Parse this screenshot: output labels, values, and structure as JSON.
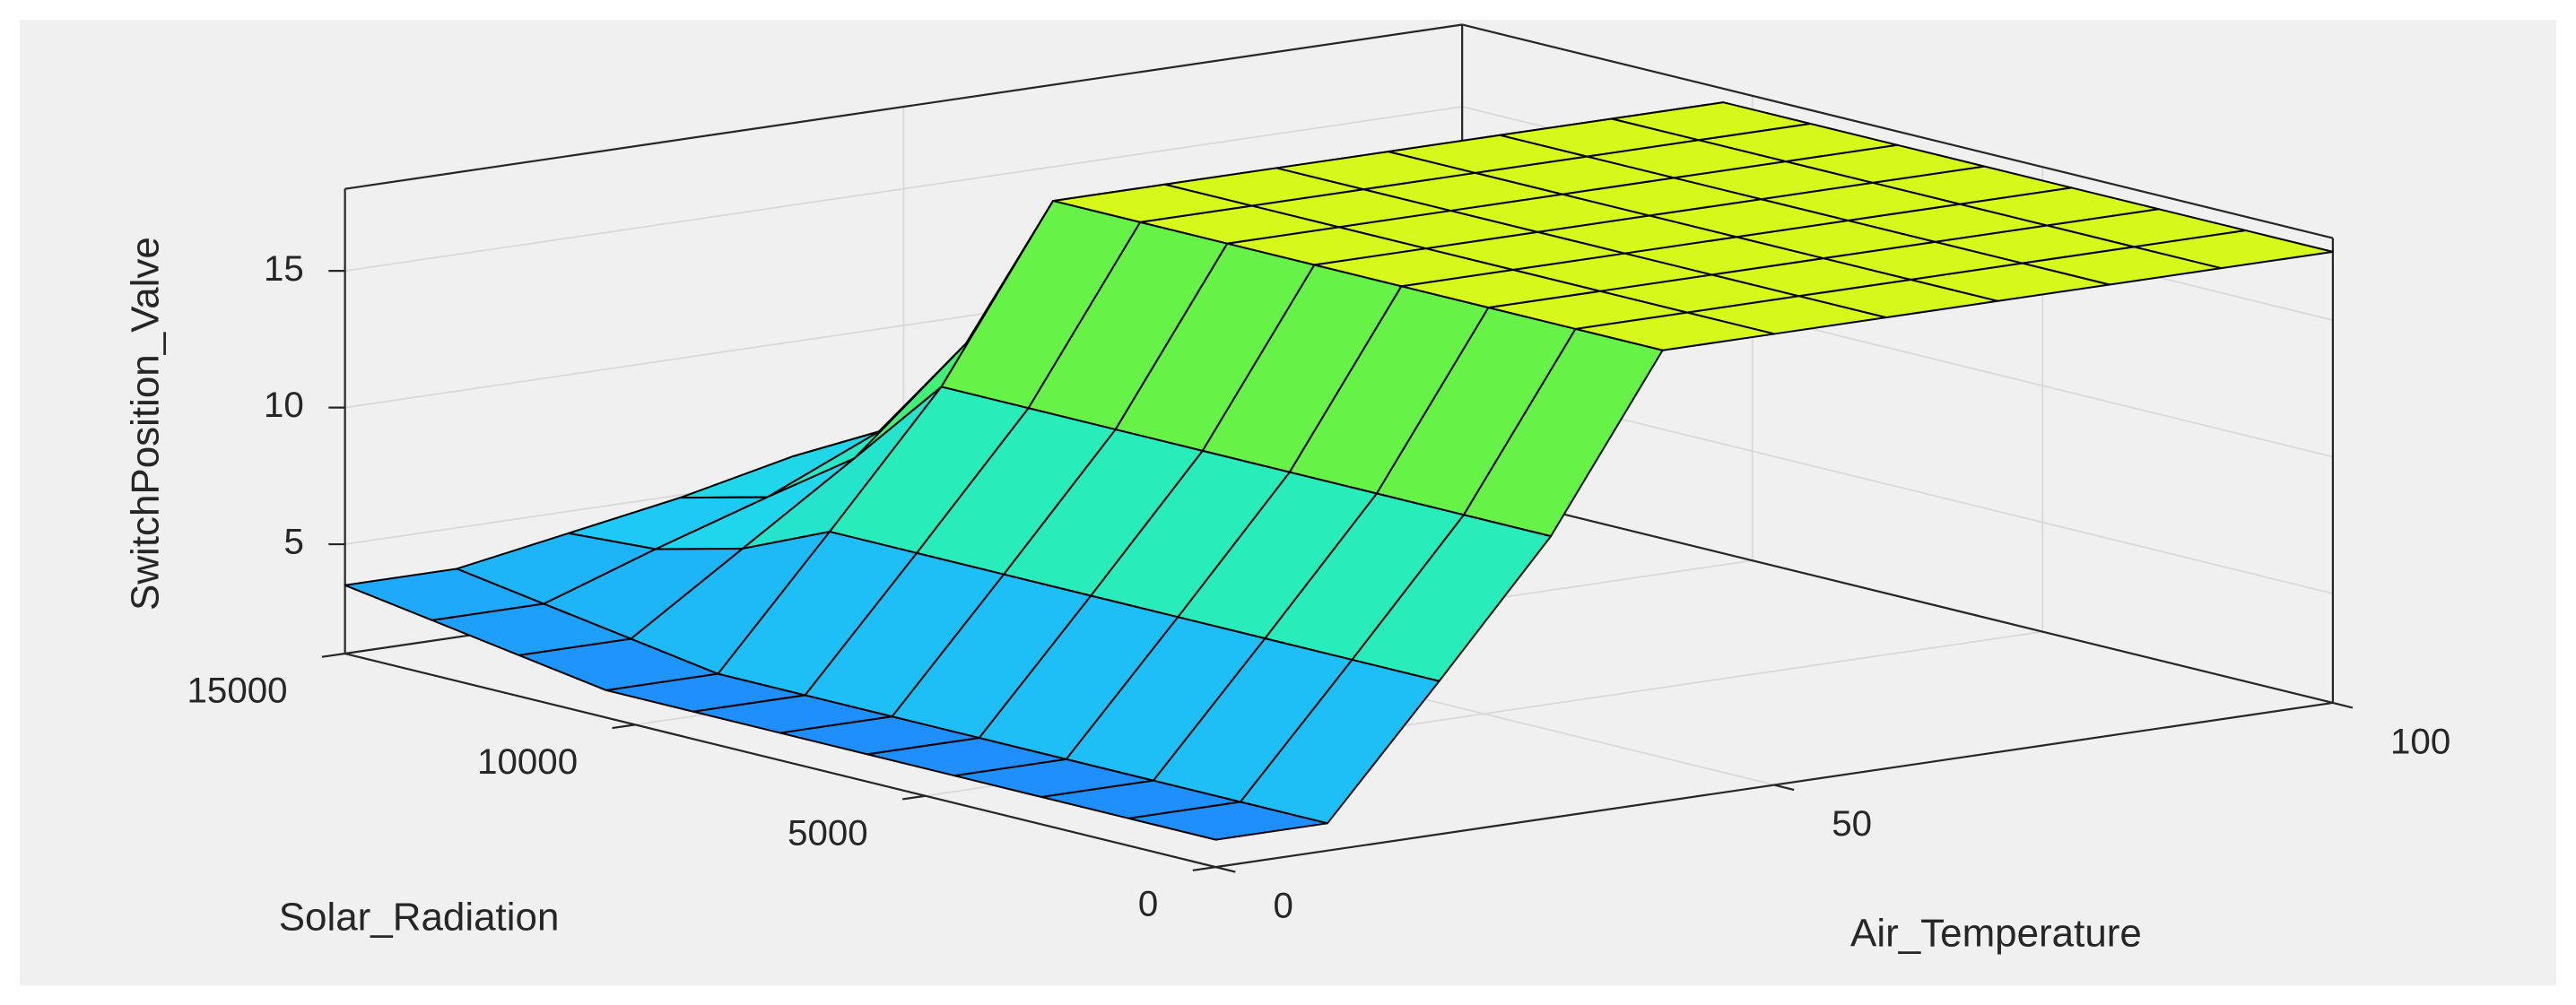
{
  "chart_data": {
    "type": "surface",
    "xlabel": "Air_Temperature",
    "ylabel": "Solar_Radiation",
    "zlabel": "SwitchPosition_Valve",
    "x": [
      0,
      10,
      20,
      30,
      40,
      50,
      60,
      70,
      80,
      90,
      100
    ],
    "y": [
      0,
      1500,
      3000,
      4500,
      6000,
      7500,
      9000,
      10500,
      12000,
      13500,
      15000
    ],
    "z": [
      [
        2,
        2,
        6.6,
        11.3,
        17.5,
        17.5,
        17.5,
        17.5,
        17.5,
        17.5,
        17.5
      ],
      [
        2,
        2,
        6.6,
        11.3,
        17.5,
        17.5,
        17.5,
        17.5,
        17.5,
        17.5,
        17.5
      ],
      [
        2,
        2,
        6.6,
        11.3,
        17.5,
        17.5,
        17.5,
        17.5,
        17.5,
        17.5,
        17.5
      ],
      [
        2,
        2,
        6.6,
        11.3,
        17.5,
        17.5,
        17.5,
        17.5,
        17.5,
        17.5,
        17.5
      ],
      [
        2,
        2,
        6.6,
        11.3,
        17.5,
        17.5,
        17.5,
        17.5,
        17.5,
        17.5,
        17.5
      ],
      [
        2,
        2,
        6.6,
        11.3,
        17.5,
        17.5,
        17.5,
        17.5,
        17.5,
        17.5,
        17.5
      ],
      [
        2,
        2,
        6.6,
        11.3,
        17.5,
        17.5,
        17.5,
        17.5,
        17.5,
        17.5,
        17.5
      ],
      [
        2,
        2,
        6.6,
        11.3,
        17.5,
        17.5,
        17.5,
        17.5,
        17.5,
        17.5,
        17.5
      ],
      [
        2.5,
        2.5,
        5.2,
        7.9,
        11.5,
        11.5,
        11.5,
        11.5,
        11.5,
        11.5,
        11.5
      ],
      [
        3,
        3,
        4.4,
        5.7,
        7.5,
        7.5,
        7.5,
        7.5,
        7.5,
        7.5,
        7.5
      ],
      [
        3.5,
        3.5,
        4.2,
        4.9,
        5.8,
        5.8,
        5.8,
        5.8,
        5.8,
        5.8,
        5.8
      ]
    ],
    "xlim": [
      0,
      100
    ],
    "xticks": [
      0,
      50,
      100
    ],
    "ylim": [
      0,
      15000
    ],
    "yticks": [
      0,
      5000,
      10000,
      15000
    ],
    "zlim": [
      1,
      18
    ],
    "zticks": [
      5,
      10,
      15
    ],
    "grid": true,
    "colormap": [
      "#1e7bff",
      "#1ed2f5",
      "#2af0b0",
      "#50f050",
      "#e8fa14"
    ],
    "edgecolor": "#000000"
  }
}
